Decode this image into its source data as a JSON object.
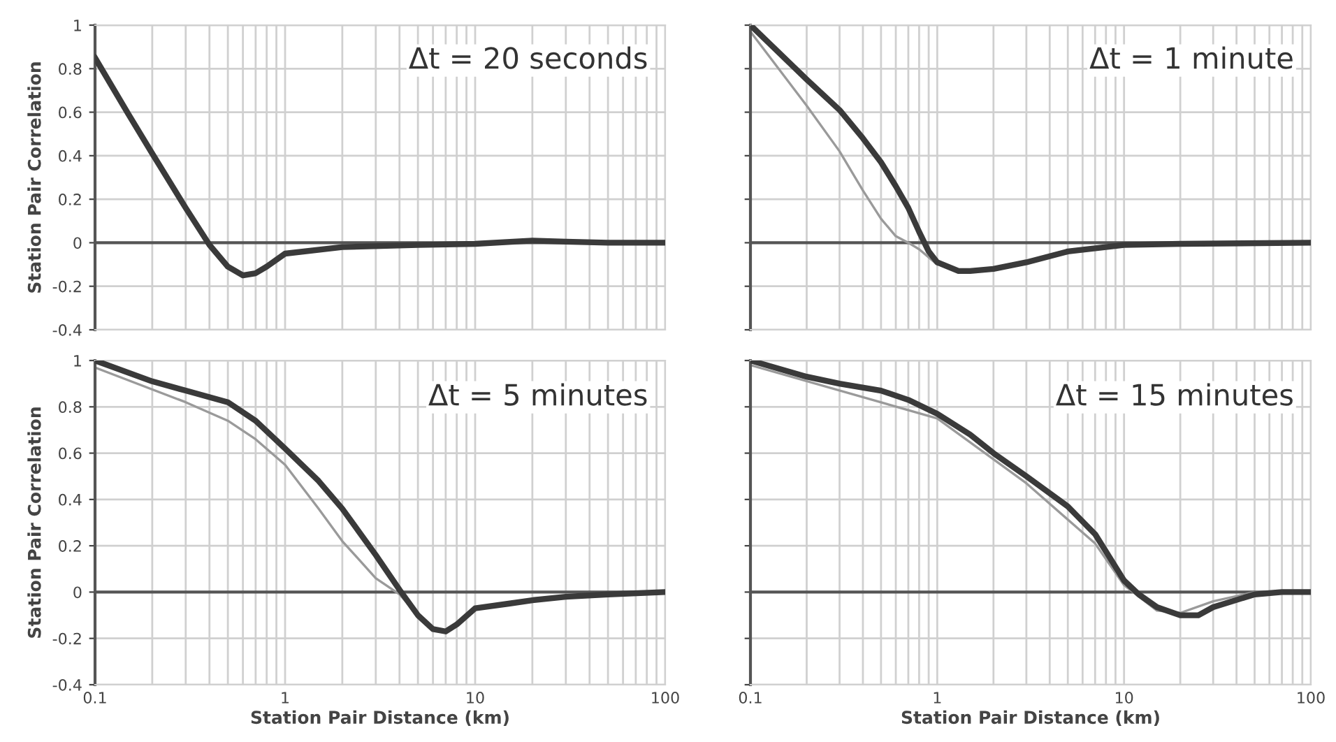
{
  "chart_data": [
    {
      "type": "line",
      "annotations": [
        "Δt = 20 seconds"
      ],
      "ylabel": "Station Pair Correlation",
      "log": "x",
      "xlim": [
        0.1,
        100
      ],
      "ylim": [
        -0.4,
        1
      ],
      "yticks": [
        -0.4,
        -0.2,
        0,
        0.2,
        0.4,
        0.6,
        0.8,
        1
      ],
      "xticks": [
        0.1,
        {
          "value": 0.2,
          "label": null
        },
        {
          "value": 0.3,
          "label": null
        },
        {
          "value": 0.4,
          "label": null
        },
        {
          "value": 0.5,
          "label": null
        },
        {
          "value": 0.6,
          "label": null
        },
        {
          "value": 0.7,
          "label": null
        },
        {
          "value": 0.8,
          "label": null
        },
        {
          "value": 0.9,
          "label": null
        },
        1,
        {
          "value": 2,
          "label": null
        },
        {
          "value": 3,
          "label": null
        },
        {
          "value": 4,
          "label": null
        },
        {
          "value": 5,
          "label": null
        },
        {
          "value": 6,
          "label": null
        },
        {
          "value": 7,
          "label": null
        },
        {
          "value": 8,
          "label": null
        },
        {
          "value": 9,
          "label": null
        },
        10,
        {
          "value": 20,
          "label": null
        },
        {
          "value": 30,
          "label": null
        },
        {
          "value": 40,
          "label": null
        },
        {
          "value": 50,
          "label": null
        },
        {
          "value": 60,
          "label": null
        },
        {
          "value": 70,
          "label": null
        },
        {
          "value": 80,
          "label": null
        },
        {
          "value": 90,
          "label": null
        },
        100
      ],
      "tick_labels": "y",
      "grid": true,
      "ref_lines": [
        {
          "axis": "y",
          "value": 0,
          "color": "#555555"
        }
      ],
      "series": [
        {
          "color": "#3a3a3a",
          "x": [
            0.1,
            0.15,
            0.2,
            0.3,
            0.4,
            0.5,
            0.6,
            0.7,
            0.8,
            1,
            2,
            5,
            10,
            20,
            30,
            50,
            100
          ],
          "values": [
            0.85,
            0.59,
            0.41,
            0.16,
            -0.01,
            -0.11,
            -0.15,
            -0.14,
            -0.11,
            -0.05,
            -0.02,
            -0.01,
            -0.005,
            0.01,
            0.005,
            0,
            0
          ]
        }
      ]
    },
    {
      "type": "line",
      "annotations": [
        "Δt = 1 minute"
      ],
      "log": "x",
      "xlim": [
        0.1,
        100
      ],
      "ylim": [
        -0.4,
        1
      ],
      "yticks": [
        -0.4,
        -0.2,
        0,
        0.2,
        0.4,
        0.6,
        0.8,
        1
      ],
      "xticks": [
        0.1,
        {
          "value": 0.2,
          "label": null
        },
        {
          "value": 0.3,
          "label": null
        },
        {
          "value": 0.4,
          "label": null
        },
        {
          "value": 0.5,
          "label": null
        },
        {
          "value": 0.6,
          "label": null
        },
        {
          "value": 0.7,
          "label": null
        },
        {
          "value": 0.8,
          "label": null
        },
        {
          "value": 0.9,
          "label": null
        },
        1,
        {
          "value": 2,
          "label": null
        },
        {
          "value": 3,
          "label": null
        },
        {
          "value": 4,
          "label": null
        },
        {
          "value": 5,
          "label": null
        },
        {
          "value": 6,
          "label": null
        },
        {
          "value": 7,
          "label": null
        },
        {
          "value": 8,
          "label": null
        },
        {
          "value": 9,
          "label": null
        },
        10,
        {
          "value": 20,
          "label": null
        },
        {
          "value": 30,
          "label": null
        },
        {
          "value": 40,
          "label": null
        },
        {
          "value": 50,
          "label": null
        },
        {
          "value": 60,
          "label": null
        },
        {
          "value": 70,
          "label": null
        },
        {
          "value": 80,
          "label": null
        },
        {
          "value": 90,
          "label": null
        },
        100
      ],
      "tick_labels": false,
      "grid": true,
      "ref_lines": [
        {
          "axis": "y",
          "value": 0,
          "color": "#555555"
        }
      ],
      "series": [
        {
          "color": "#9a9a9a",
          "x": [
            0.1,
            0.2,
            0.3,
            0.4,
            0.5,
            0.6,
            0.7,
            0.8,
            1
          ],
          "values": [
            0.97,
            0.63,
            0.42,
            0.24,
            0.11,
            0.03,
            0,
            -0.03,
            -0.1
          ]
        },
        {
          "color": "#3a3a3a",
          "x": [
            0.1,
            0.2,
            0.3,
            0.4,
            0.5,
            0.6,
            0.7,
            0.8,
            0.9,
            1,
            1.3,
            1.5,
            2,
            3,
            5,
            10,
            20,
            100
          ],
          "values": [
            1,
            0.75,
            0.61,
            0.48,
            0.37,
            0.26,
            0.16,
            0.05,
            -0.04,
            -0.09,
            -0.13,
            -0.13,
            -0.12,
            -0.09,
            -0.04,
            -0.01,
            -0.005,
            0
          ]
        }
      ]
    },
    {
      "type": "line",
      "annotations": [
        "Δt = 5 minutes"
      ],
      "ylabel": "Station Pair Correlation",
      "xlabel": "Station Pair Distance (km)",
      "log": "x",
      "xlim": [
        0.1,
        100
      ],
      "ylim": [
        -0.4,
        1
      ],
      "yticks": [
        -0.4,
        -0.2,
        0,
        0.2,
        0.4,
        0.6,
        0.8,
        1
      ],
      "xticks": [
        0.1,
        {
          "value": 0.2,
          "label": null
        },
        {
          "value": 0.3,
          "label": null
        },
        {
          "value": 0.4,
          "label": null
        },
        {
          "value": 0.5,
          "label": null
        },
        {
          "value": 0.6,
          "label": null
        },
        {
          "value": 0.7,
          "label": null
        },
        {
          "value": 0.8,
          "label": null
        },
        {
          "value": 0.9,
          "label": null
        },
        1,
        {
          "value": 2,
          "label": null
        },
        {
          "value": 3,
          "label": null
        },
        {
          "value": 4,
          "label": null
        },
        {
          "value": 5,
          "label": null
        },
        {
          "value": 6,
          "label": null
        },
        {
          "value": 7,
          "label": null
        },
        {
          "value": 8,
          "label": null
        },
        {
          "value": 9,
          "label": null
        },
        10,
        {
          "value": 20,
          "label": null
        },
        {
          "value": 30,
          "label": null
        },
        {
          "value": 40,
          "label": null
        },
        {
          "value": 50,
          "label": null
        },
        {
          "value": 60,
          "label": null
        },
        {
          "value": 70,
          "label": null
        },
        {
          "value": 80,
          "label": null
        },
        {
          "value": 90,
          "label": null
        },
        100
      ],
      "grid": true,
      "ref_lines": [
        {
          "axis": "y",
          "value": 0,
          "color": "#555555"
        }
      ],
      "series": [
        {
          "color": "#9a9a9a",
          "x": [
            0.1,
            0.3,
            0.5,
            0.7,
            1,
            1.5,
            2,
            3,
            4,
            5,
            6,
            7,
            8,
            10,
            20,
            50,
            100
          ],
          "values": [
            0.97,
            0.82,
            0.74,
            0.66,
            0.55,
            0.36,
            0.22,
            0.06,
            -0.01,
            -0.1,
            -0.16,
            -0.17,
            -0.14,
            -0.07,
            -0.035,
            -0.01,
            0
          ]
        },
        {
          "color": "#3a3a3a",
          "x": [
            0.1,
            0.2,
            0.3,
            0.5,
            0.7,
            1,
            1.5,
            2,
            3,
            4,
            5,
            6,
            7,
            8,
            10,
            15,
            20,
            30,
            50,
            100
          ],
          "values": [
            1,
            0.91,
            0.87,
            0.82,
            0.74,
            0.62,
            0.48,
            0.36,
            0.16,
            0.01,
            -0.1,
            -0.16,
            -0.17,
            -0.14,
            -0.07,
            -0.05,
            -0.035,
            -0.02,
            -0.01,
            0
          ]
        }
      ]
    },
    {
      "type": "line",
      "annotations": [
        "Δt = 15 minutes"
      ],
      "xlabel": "Station Pair Distance (km)",
      "log": "x",
      "xlim": [
        0.1,
        100
      ],
      "ylim": [
        -0.4,
        1
      ],
      "yticks": [
        -0.4,
        -0.2,
        0,
        0.2,
        0.4,
        0.6,
        0.8,
        1
      ],
      "xticks": [
        0.1,
        {
          "value": 0.2,
          "label": null
        },
        {
          "value": 0.3,
          "label": null
        },
        {
          "value": 0.4,
          "label": null
        },
        {
          "value": 0.5,
          "label": null
        },
        {
          "value": 0.6,
          "label": null
        },
        {
          "value": 0.7,
          "label": null
        },
        {
          "value": 0.8,
          "label": null
        },
        {
          "value": 0.9,
          "label": null
        },
        1,
        {
          "value": 2,
          "label": null
        },
        {
          "value": 3,
          "label": null
        },
        {
          "value": 4,
          "label": null
        },
        {
          "value": 5,
          "label": null
        },
        {
          "value": 6,
          "label": null
        },
        {
          "value": 7,
          "label": null
        },
        {
          "value": 8,
          "label": null
        },
        {
          "value": 9,
          "label": null
        },
        10,
        {
          "value": 20,
          "label": null
        },
        {
          "value": 30,
          "label": null
        },
        {
          "value": 40,
          "label": null
        },
        {
          "value": 50,
          "label": null
        },
        {
          "value": 60,
          "label": null
        },
        {
          "value": 70,
          "label": null
        },
        {
          "value": 80,
          "label": null
        },
        {
          "value": 90,
          "label": null
        },
        100
      ],
      "tick_labels": "x",
      "grid": true,
      "ref_lines": [
        {
          "axis": "y",
          "value": 0,
          "color": "#555555"
        }
      ],
      "series": [
        {
          "color": "#9a9a9a",
          "x": [
            0.1,
            1,
            3,
            7,
            10,
            15,
            20,
            30,
            50,
            100
          ],
          "values": [
            0.98,
            0.75,
            0.47,
            0.21,
            0.03,
            -0.08,
            -0.09,
            -0.04,
            0,
            0
          ]
        },
        {
          "color": "#3a3a3a",
          "x": [
            0.1,
            0.2,
            0.3,
            0.5,
            0.7,
            1,
            1.5,
            2,
            3,
            5,
            7,
            10,
            12,
            15,
            20,
            25,
            30,
            50,
            70,
            100
          ],
          "values": [
            1,
            0.93,
            0.9,
            0.87,
            0.83,
            0.77,
            0.68,
            0.6,
            0.5,
            0.37,
            0.25,
            0.05,
            -0.01,
            -0.065,
            -0.1,
            -0.1,
            -0.065,
            -0.01,
            0,
            0
          ]
        }
      ]
    }
  ]
}
